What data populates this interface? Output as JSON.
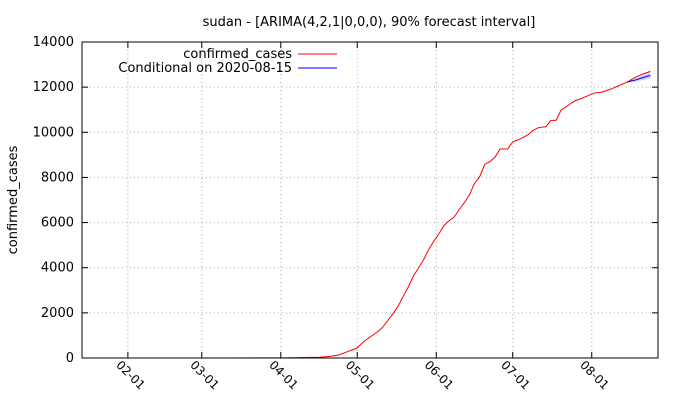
{
  "chart_data": {
    "type": "line",
    "title": "sudan -  [ARIMA(4,2,1|0,0,0), 90% forecast interval]",
    "xlabel": "",
    "ylabel": "confirmed_cases",
    "xlim": [
      "2020-01-14",
      "2020-08-27"
    ],
    "ylim": [
      0,
      14000
    ],
    "y_ticks": [
      0,
      2000,
      4000,
      6000,
      8000,
      10000,
      12000,
      14000
    ],
    "x_ticks": [
      {
        "date": "2020-02-01",
        "label": "02-01"
      },
      {
        "date": "2020-03-01",
        "label": "03-01"
      },
      {
        "date": "2020-04-01",
        "label": "04-01"
      },
      {
        "date": "2020-05-01",
        "label": "05-01"
      },
      {
        "date": "2020-06-01",
        "label": "06-01"
      },
      {
        "date": "2020-07-01",
        "label": "07-01"
      },
      {
        "date": "2020-08-01",
        "label": "08-01"
      }
    ],
    "grid": true,
    "legend_position": "top-left",
    "series": [
      {
        "name": "confirmed_cases",
        "color": "#ff0000",
        "points": [
          [
            "2020-03-13",
            1
          ],
          [
            "2020-04-01",
            7
          ],
          [
            "2020-04-08",
            14
          ],
          [
            "2020-04-12",
            25
          ],
          [
            "2020-04-16",
            33
          ],
          [
            "2020-04-20",
            66
          ],
          [
            "2020-04-24",
            140
          ],
          [
            "2020-04-27",
            275
          ],
          [
            "2020-05-01",
            442
          ],
          [
            "2020-05-03",
            678
          ],
          [
            "2020-05-06",
            930
          ],
          [
            "2020-05-09",
            1164
          ],
          [
            "2020-05-11",
            1365
          ],
          [
            "2020-05-13",
            1661
          ],
          [
            "2020-05-15",
            1964
          ],
          [
            "2020-05-17",
            2289
          ],
          [
            "2020-05-19",
            2728
          ],
          [
            "2020-05-21",
            3138
          ],
          [
            "2020-05-23",
            3628
          ],
          [
            "2020-05-25",
            3976
          ],
          [
            "2020-05-27",
            4346
          ],
          [
            "2020-05-29",
            4800
          ],
          [
            "2020-05-31",
            5173
          ],
          [
            "2020-06-02",
            5499
          ],
          [
            "2020-06-04",
            5865
          ],
          [
            "2020-06-06",
            6081
          ],
          [
            "2020-06-08",
            6242
          ],
          [
            "2020-06-10",
            6580
          ],
          [
            "2020-06-12",
            6879
          ],
          [
            "2020-06-14",
            7220
          ],
          [
            "2020-06-16",
            7740
          ],
          [
            "2020-06-18",
            8020
          ],
          [
            "2020-06-20",
            8580
          ],
          [
            "2020-06-22",
            8698
          ],
          [
            "2020-06-24",
            8889
          ],
          [
            "2020-06-26",
            9257
          ],
          [
            "2020-06-29",
            9257
          ],
          [
            "2020-07-01",
            9573
          ],
          [
            "2020-07-03",
            9663
          ],
          [
            "2020-07-05",
            9767
          ],
          [
            "2020-07-07",
            9894
          ],
          [
            "2020-07-09",
            10084
          ],
          [
            "2020-07-11",
            10204
          ],
          [
            "2020-07-14",
            10250
          ],
          [
            "2020-07-16",
            10527
          ],
          [
            "2020-07-18",
            10527
          ],
          [
            "2020-07-20",
            10992
          ],
          [
            "2020-07-22",
            11127
          ],
          [
            "2020-07-24",
            11302
          ],
          [
            "2020-07-26",
            11424
          ],
          [
            "2020-07-28",
            11496
          ],
          [
            "2020-07-31",
            11644
          ],
          [
            "2020-08-02",
            11738
          ],
          [
            "2020-08-05",
            11780
          ],
          [
            "2020-08-08",
            11894
          ],
          [
            "2020-08-11",
            12033
          ],
          [
            "2020-08-15",
            12230
          ],
          [
            "2020-08-18",
            12430
          ],
          [
            "2020-08-21",
            12580
          ],
          [
            "2020-08-24",
            12700
          ]
        ]
      },
      {
        "name": "Conditional on 2020-08-15",
        "color": "#0000ff",
        "points": [
          [
            "2020-08-15",
            12230
          ],
          [
            "2020-08-18",
            12310
          ],
          [
            "2020-08-21",
            12420
          ],
          [
            "2020-08-24",
            12520
          ]
        ],
        "interval": {
          "color": "#aab0ff",
          "lower": [
            [
              "2020-08-15",
              12230
            ],
            [
              "2020-08-18",
              12240
            ],
            [
              "2020-08-21",
              12310
            ],
            [
              "2020-08-24",
              12380
            ]
          ],
          "upper": [
            [
              "2020-08-15",
              12230
            ],
            [
              "2020-08-18",
              12380
            ],
            [
              "2020-08-21",
              12550
            ],
            [
              "2020-08-24",
              12720
            ]
          ]
        }
      }
    ]
  }
}
